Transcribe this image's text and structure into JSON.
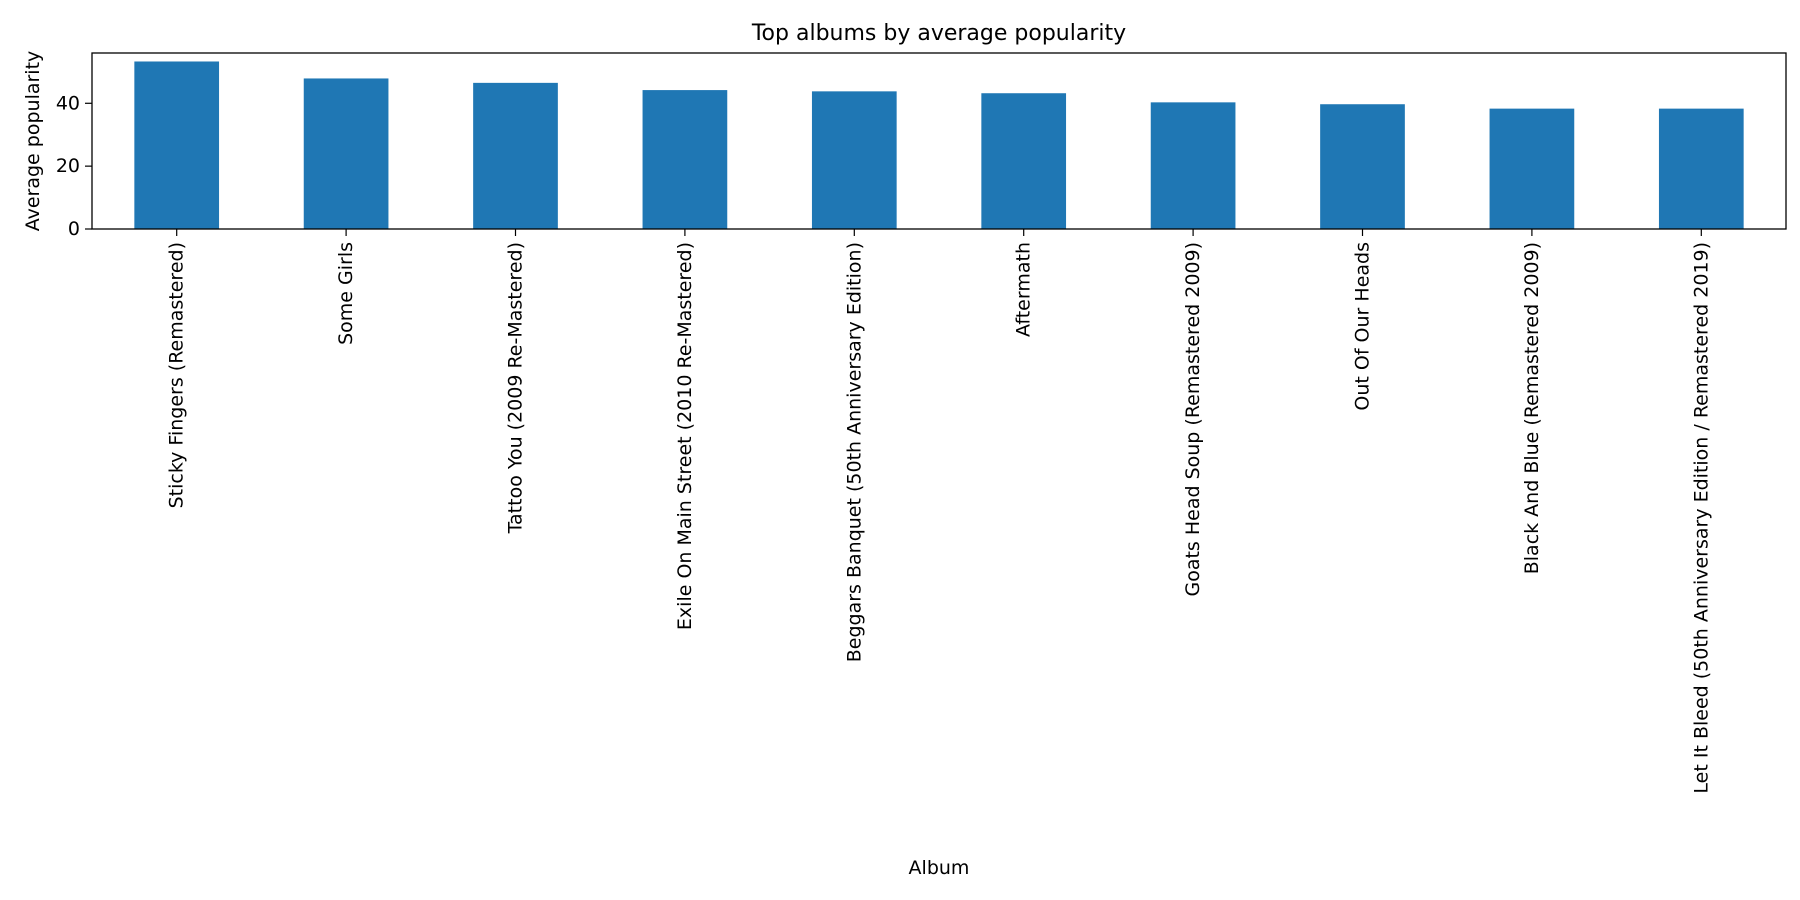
{
  "chart_data": {
    "type": "bar",
    "title": "Top albums by average popularity",
    "xlabel": "Album",
    "ylabel": "Average popularity",
    "categories": [
      "Sticky Fingers (Remastered)",
      "Some Girls",
      "Tattoo You (2009 Re-Mastered)",
      "Exile On Main Street (2010 Re-Mastered)",
      "Beggars Banquet (50th Anniversary Edition)",
      "Aftermath",
      "Goats Head Soup (Remastered 2009)",
      "Out Of Our Heads",
      "Black And Blue (Remastered 2009)",
      "Let It Bleed (50th Anniversary Edition / Remastered 2019)"
    ],
    "values": [
      53.3,
      47.9,
      46.5,
      44.2,
      43.8,
      43.2,
      40.3,
      39.7,
      38.3,
      38.3
    ],
    "ylim": [
      0,
      56
    ],
    "yticks": [
      0,
      20,
      40
    ],
    "bar_color": "#1f77b4",
    "grid": false,
    "legend": false
  }
}
